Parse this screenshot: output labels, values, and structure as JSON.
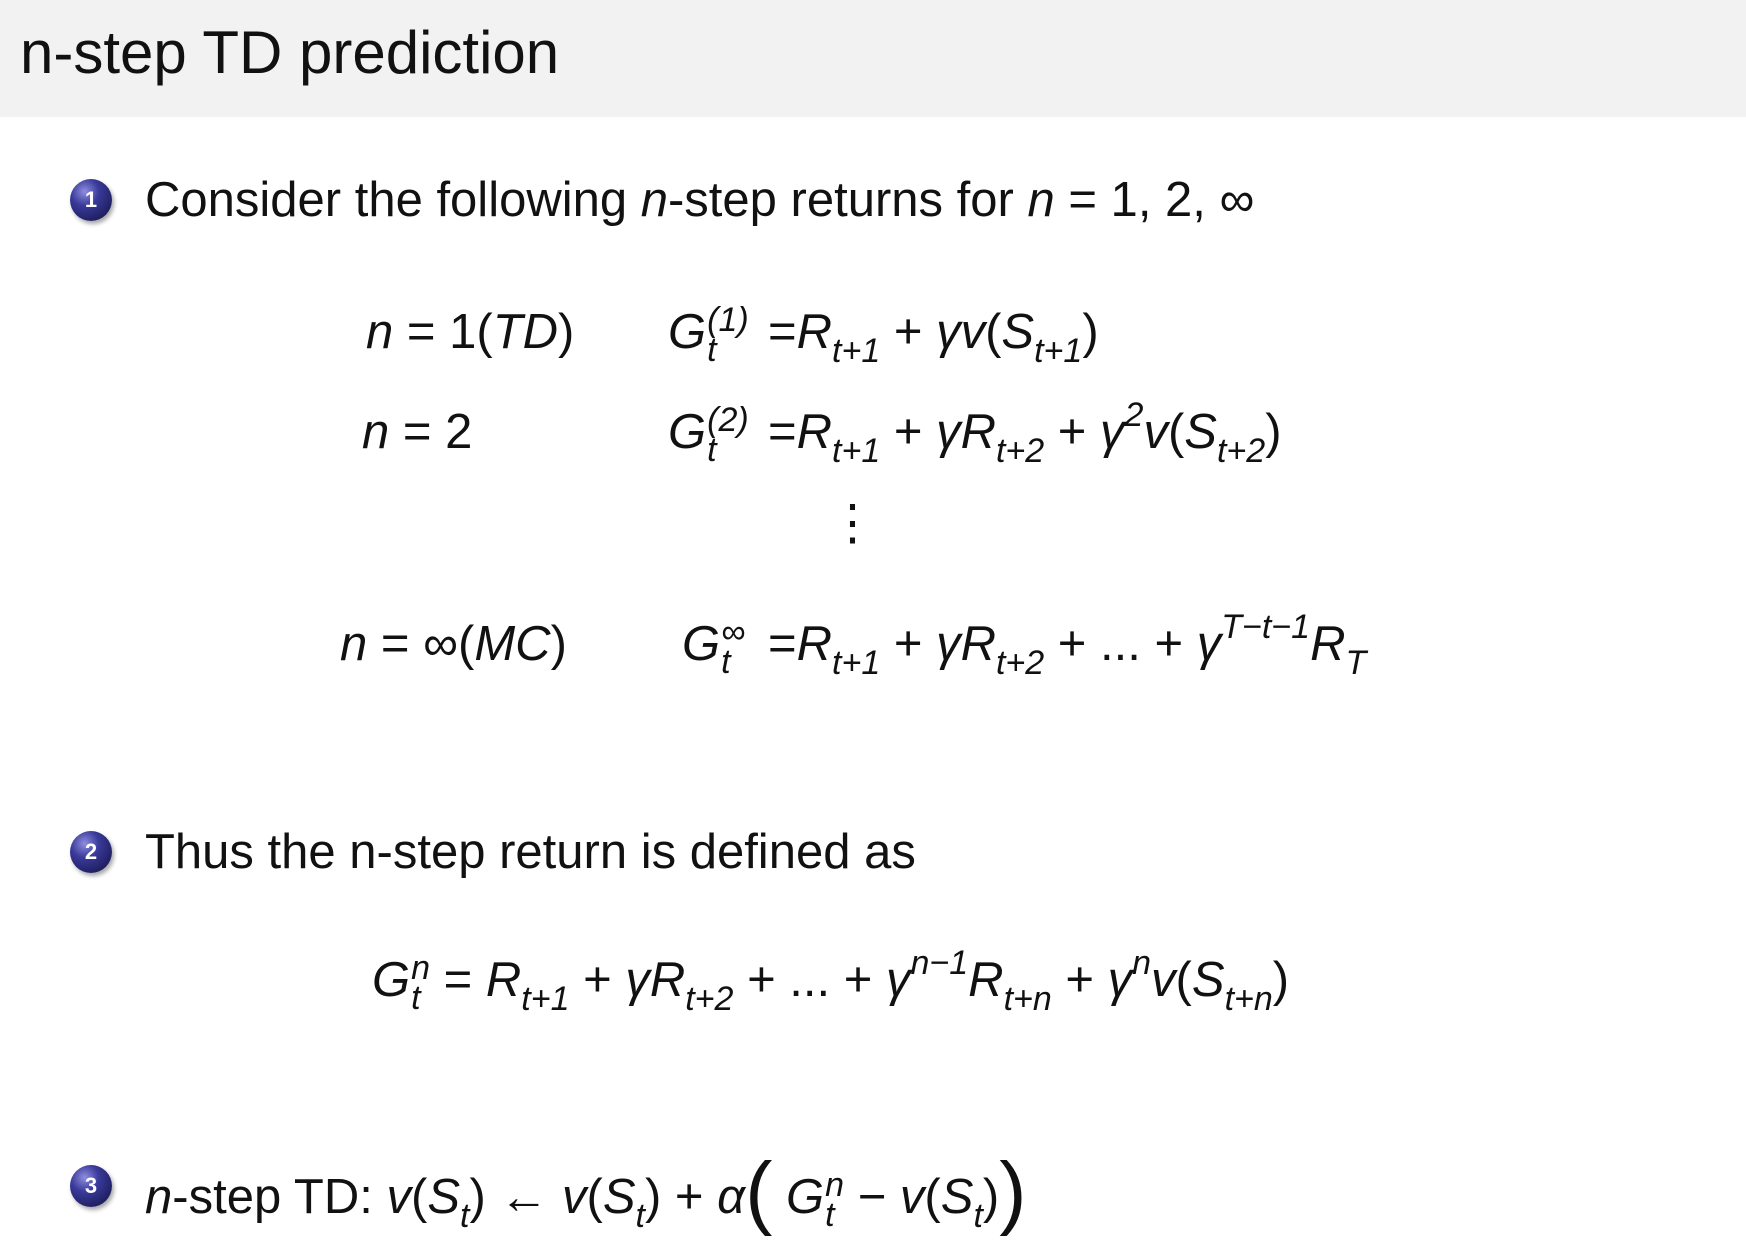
{
  "slide": {
    "title": "n-step TD prediction",
    "bullet_color": "#2a2a80",
    "header_bg": "#f2f2f2",
    "bullets": [
      {
        "number": "1",
        "tokens": [
          "Consider the following ",
          {
            "i": "n"
          },
          "-step returns for ",
          {
            "i": "n"
          },
          " = 1, 2, ∞"
        ]
      },
      {
        "number": "2",
        "tokens": [
          "Thus the n-step return is defined as"
        ]
      },
      {
        "number": "3",
        "tokens": [
          {
            "i": "n"
          },
          "-step TD: ",
          {
            "i": "v"
          },
          "(",
          {
            "i": "S",
            "sub": "t"
          },
          ") ← ",
          {
            "i": "v"
          },
          "(",
          {
            "i": "S",
            "sub": "t"
          },
          ") + ",
          {
            "i": "α"
          },
          {
            "big": "("
          },
          " ",
          {
            "i": "G",
            "pair": [
              "n",
              "t"
            ]
          },
          " − ",
          {
            "i": "v"
          },
          "(",
          {
            "i": "S",
            "sub": "t"
          },
          ")",
          {
            "big": ")"
          }
        ]
      }
    ],
    "returns_table": [
      {
        "case": [
          {
            "i": "n"
          },
          " = 1(",
          {
            "i": "TD"
          },
          ")"
        ],
        "lhs": [
          {
            "i": "G",
            "pair": [
              "(1)",
              "t"
            ]
          }
        ],
        "rhs": [
          " =",
          {
            "i": "R",
            "sub": "t+1"
          },
          " + ",
          {
            "i": "γv"
          },
          "(",
          {
            "i": "S",
            "sub": "t+1"
          },
          ")"
        ]
      },
      {
        "case": [
          {
            "i": "n"
          },
          " = 2"
        ],
        "lhs": [
          {
            "i": "G",
            "pair": [
              "(2)",
              "t"
            ]
          }
        ],
        "rhs": [
          " =",
          {
            "i": "R",
            "sub": "t+1"
          },
          " + ",
          {
            "i": "γR",
            "sub": "t+2"
          },
          " + ",
          {
            "i": "γ",
            "sup": "2"
          },
          {
            "i": "v"
          },
          "(",
          {
            "i": "S",
            "sub": "t+2"
          },
          ")"
        ]
      },
      {
        "case": [
          {
            "i": "n"
          },
          " = ∞(",
          {
            "i": "MC"
          },
          ")"
        ],
        "lhs": [
          {
            "i": "G",
            "pair": [
              "∞",
              "t"
            ]
          }
        ],
        "rhs": [
          " =",
          {
            "i": "R",
            "sub": "t+1"
          },
          " + ",
          {
            "i": "γR",
            "sub": "t+2"
          },
          " + ... + ",
          {
            "i": "γ",
            "sup": "T−t−1"
          },
          {
            "i": "R",
            "sub": "T"
          }
        ]
      }
    ],
    "vdots": "⋮",
    "nstep_definition": [
      {
        "i": "G",
        "pair": [
          "n",
          "t"
        ]
      },
      " = ",
      {
        "i": "R",
        "sub": "t+1"
      },
      " + ",
      {
        "i": "γR",
        "sub": "t+2"
      },
      " + ... + ",
      {
        "i": "γ",
        "sup": "n−1"
      },
      {
        "i": "R",
        "sub": "t+n"
      },
      " + ",
      {
        "i": "γ",
        "sup": "n"
      },
      {
        "i": "v"
      },
      "(",
      {
        "i": "S",
        "sub": "t+n"
      },
      ")"
    ]
  }
}
